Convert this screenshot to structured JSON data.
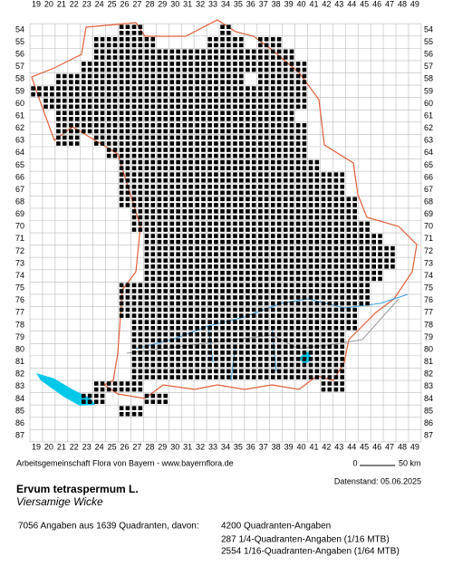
{
  "grid": {
    "columns": [
      19,
      20,
      21,
      22,
      23,
      24,
      25,
      26,
      27,
      28,
      29,
      30,
      31,
      32,
      33,
      34,
      35,
      36,
      37,
      38,
      39,
      40,
      41,
      42,
      43,
      44,
      45,
      46,
      47,
      48,
      49
    ],
    "rows": [
      54,
      55,
      56,
      57,
      58,
      59,
      60,
      61,
      62,
      63,
      64,
      65,
      66,
      67,
      68,
      69,
      70,
      71,
      72,
      73,
      74,
      75,
      76,
      77,
      78,
      79,
      80,
      81,
      82,
      83,
      84,
      85,
      86,
      87
    ]
  },
  "distribution": [
    {
      "row": 54,
      "cols": [
        [
          26,
          27
        ],
        [
          34,
          34
        ]
      ]
    },
    {
      "row": 55,
      "cols": [
        [
          24,
          28
        ],
        [
          33,
          35
        ],
        [
          37,
          38
        ]
      ]
    },
    {
      "row": 56,
      "cols": [
        [
          24,
          39
        ]
      ]
    },
    {
      "row": 57,
      "cols": [
        [
          23,
          40
        ]
      ]
    },
    {
      "row": 58,
      "cols": [
        [
          21,
          22
        ],
        [
          23,
          35
        ],
        [
          37,
          40
        ]
      ]
    },
    {
      "row": 59,
      "cols": [
        [
          19,
          40
        ]
      ]
    },
    {
      "row": 60,
      "cols": [
        [
          20,
          40
        ]
      ]
    },
    {
      "row": 61,
      "cols": [
        [
          21,
          39
        ]
      ]
    },
    {
      "row": 62,
      "cols": [
        [
          21,
          22
        ],
        [
          23,
          40
        ]
      ]
    },
    {
      "row": 63,
      "cols": [
        [
          21,
          22
        ],
        [
          24,
          40
        ]
      ]
    },
    {
      "row": 64,
      "cols": [
        [
          25,
          40
        ]
      ]
    },
    {
      "row": 65,
      "cols": [
        [
          26,
          41
        ]
      ]
    },
    {
      "row": 66,
      "cols": [
        [
          26,
          43
        ]
      ]
    },
    {
      "row": 67,
      "cols": [
        [
          26,
          43
        ]
      ]
    },
    {
      "row": 68,
      "cols": [
        [
          26,
          44
        ]
      ]
    },
    {
      "row": 69,
      "cols": [
        [
          27,
          44
        ]
      ]
    },
    {
      "row": 70,
      "cols": [
        [
          27,
          45
        ]
      ]
    },
    {
      "row": 71,
      "cols": [
        [
          28,
          46
        ]
      ]
    },
    {
      "row": 72,
      "cols": [
        [
          28,
          47
        ]
      ]
    },
    {
      "row": 73,
      "cols": [
        [
          28,
          47
        ]
      ]
    },
    {
      "row": 74,
      "cols": [
        [
          28,
          46
        ]
      ]
    },
    {
      "row": 75,
      "cols": [
        [
          26,
          45
        ]
      ]
    },
    {
      "row": 76,
      "cols": [
        [
          26,
          45
        ]
      ]
    },
    {
      "row": 77,
      "cols": [
        [
          26,
          44
        ]
      ]
    },
    {
      "row": 78,
      "cols": [
        [
          27,
          44
        ]
      ]
    },
    {
      "row": 79,
      "cols": [
        [
          27,
          43
        ]
      ]
    },
    {
      "row": 80,
      "cols": [
        [
          27,
          43
        ]
      ]
    },
    {
      "row": 81,
      "cols": [
        [
          27,
          43
        ]
      ]
    },
    {
      "row": 82,
      "cols": [
        [
          27,
          43
        ]
      ]
    },
    {
      "row": 83,
      "cols": [
        [
          24,
          27
        ],
        [
          42,
          43
        ]
      ]
    },
    {
      "row": 84,
      "cols": [
        [
          23,
          24
        ],
        [
          28,
          29
        ]
      ]
    },
    {
      "row": 85,
      "cols": [
        [
          26,
          27
        ]
      ]
    }
  ],
  "footer": {
    "credit": "Arbeitsgemeinschaft Flora von Bayern - www.bayernflora.de",
    "scale_start": "0",
    "scale_end": "50 km",
    "date": "Datenstand: 05.06.2025"
  },
  "species": {
    "name": "Ervum tetraspermum L.",
    "common": "Viersamige Wicke"
  },
  "summary": {
    "total": "7056 Angaben aus 1639 Quadranten, davon:",
    "q": "4200 Quadranten-Angaben",
    "q4": "287 1/4-Quadranten-Angaben (1/16 MTB)",
    "q16": "2554 1/16-Quadranten-Angaben (1/64 MTB)"
  }
}
